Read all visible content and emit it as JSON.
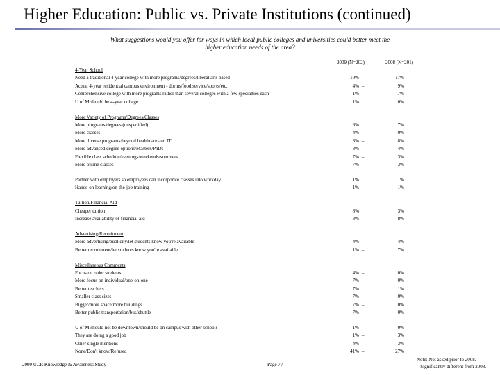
{
  "header": {
    "title": "Higher Education:  Public vs. Private Institutions (continued)",
    "question": "What suggestions would you offer for ways in which local public colleges and universities could better meet the higher education needs of the area?"
  },
  "table": {
    "columns": [
      "2009 (N=202)",
      "2008 (N=201)"
    ],
    "groups": [
      {
        "heading": "4-Year School",
        "rows": [
          {
            "label": "Need a traditional 4-year college with more programs/degrees/liberal arts based",
            "v2009": "10%",
            "sig": "–",
            "v2008": "17%"
          },
          {
            "label": "Actual 4-year residential campus environment - dorms/food service/sports/etc.",
            "v2009": "4%",
            "sig": "–",
            "v2008": "9%"
          },
          {
            "label": "Comprehensive college with more programs rather than several colleges with a few specialties each",
            "v2009": "1%",
            "v2008": "7%"
          },
          {
            "label": "U of M should be 4-year college",
            "v2009": "1%",
            "v2008": "0%"
          }
        ]
      },
      {
        "heading": "More Variety of Programs/Degrees/Classes",
        "rows": [
          {
            "label": "More programs/degrees (unspecified)",
            "v2009": "6%",
            "v2008": "7%"
          },
          {
            "label": "More classes",
            "v2009": "4%",
            "sig": "–",
            "v2008": "0%"
          },
          {
            "label": "More diverse programs/beyond healthcare and IT",
            "v2009": "3%",
            "sig": "–",
            "v2008": "8%"
          },
          {
            "label": "More advanced degree options/Masters/PhDs",
            "v2009": "3%",
            "v2008": "4%"
          },
          {
            "label": "Flexible class schedule/evenings/weekends/summers",
            "v2009": "7%",
            "sig": "–",
            "v2008": "3%"
          },
          {
            "label": "More online classes",
            "v2009": "7%",
            "v2008": "3%"
          }
        ]
      },
      {
        "rows": [
          {
            "label": "Partner with employers so employees can incorporate classes into workday",
            "v2009": "1%",
            "v2008": "1%"
          },
          {
            "label": "Hands-on learning/on-the-job training",
            "v2009": "1%",
            "v2008": "1%"
          }
        ]
      },
      {
        "heading": "Tuition/Financial Aid",
        "rows": [
          {
            "label": "Cheaper tuition",
            "v2009": "8%",
            "v2008": "3%"
          },
          {
            "label": "Increase availability of financial aid",
            "v2009": "3%",
            "v2008": "8%"
          }
        ]
      },
      {
        "heading": "Advertising/Recruitment",
        "rows": [
          {
            "label": "More advertising/publicity/let students know you're available",
            "v2009": "4%",
            "v2008": "4%"
          },
          {
            "label": "Better recruitment/let students know you're available",
            "v2009": "1%",
            "sig": "–",
            "v2008": "7%"
          }
        ]
      },
      {
        "heading": "Miscellaneous Comments",
        "rows": [
          {
            "label": "Focus on older students",
            "v2009": "4%",
            "sig": "–",
            "v2008": "0%"
          },
          {
            "label": "More focus on individual/one-on-one",
            "v2009": "7%",
            "sig": "–",
            "v2008": "0%"
          },
          {
            "label": "Better teachers",
            "v2009": "7%",
            "v2008": "1%"
          },
          {
            "label": "Smaller class sizes",
            "v2009": "7%",
            "sig": "–",
            "v2008": "0%"
          },
          {
            "label": "Bigger/more space/more buildings",
            "v2009": "7%",
            "sig": "–",
            "v2008": "0%"
          },
          {
            "label": "Better public transportation/bus/shuttle",
            "v2009": "7%",
            "sig": "–",
            "v2008": "0%"
          }
        ]
      },
      {
        "rows": [
          {
            "label": "U of M should not be downtown/should be on campus with other schools",
            "v2009": "1%",
            "v2008": "0%"
          },
          {
            "label": "They are doing a good job",
            "v2009": "1%",
            "sig": "–",
            "v2008": "3%"
          },
          {
            "label": "Other single mentions",
            "v2009": "4%",
            "v2008": "3%"
          },
          {
            "label": "None/Don't know/Refused",
            "v2009": "41%",
            "sig": "–",
            "v2008": "27%"
          }
        ]
      }
    ]
  },
  "footer": {
    "study": "2009 UCR Knowledge & Awareness Study",
    "page": "Page 77",
    "note": "Note:  Not asked prior to 2008.",
    "legend": "– Significantly different from 2008."
  }
}
